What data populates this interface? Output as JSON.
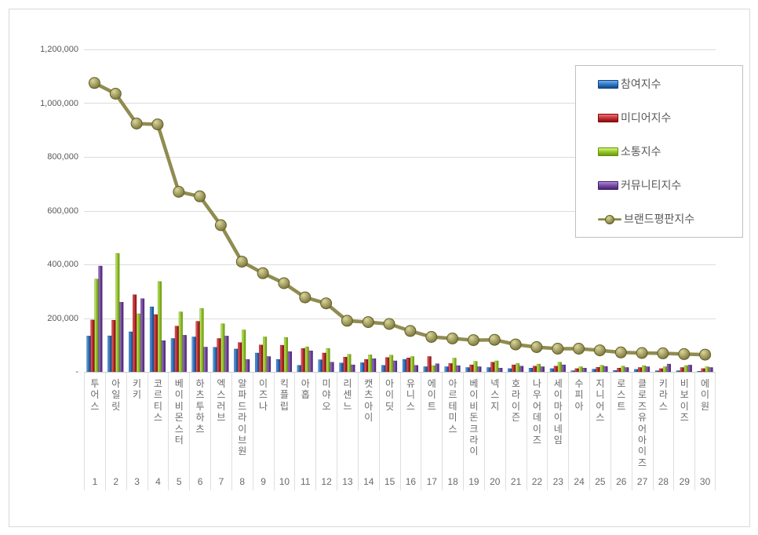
{
  "page": {
    "background": "#ffffff",
    "frame_border_color": "#d9d9d9",
    "gridline_color": "#dcdcdc",
    "axis_text_color": "#595959",
    "category_text_color": "#6a6a6a",
    "legend_border_color": "#bfbfbf"
  },
  "chart_data": {
    "type": "bar",
    "subtype": "grouped-3d-bars-with-line-overlay",
    "title": "",
    "grid": true,
    "legend_position": "top-right-inside",
    "ylim": [
      0,
      1200000
    ],
    "ytick_values": [
      1200000,
      1000000,
      800000,
      600000,
      400000,
      200000,
      0
    ],
    "ytick_labels": [
      "1,200,000",
      "1,000,000",
      "800,000",
      "600,000",
      "400,000",
      "200,000",
      "-"
    ],
    "categories": [
      "투어스",
      "아일릿",
      "키키",
      "코르티스",
      "베이비몬스터",
      "하츠투하츠",
      "엑스러브",
      "알파드라이브원",
      "이즈나",
      "킥플립",
      "아홉",
      "미야오",
      "리센느",
      "캣츠아이",
      "아이딧",
      "유니스",
      "에이트",
      "아르테미스",
      "베이비돈크라이",
      "넥스지",
      "호라이즌",
      "나우어데이즈",
      "세이마이네임",
      "수피아",
      "지니어스",
      "로스트",
      "클로즈유어아이즈",
      "키라스",
      "비보이즈",
      "에이원"
    ],
    "category_ranks": [
      "1",
      "2",
      "3",
      "4",
      "5",
      "6",
      "7",
      "8",
      "9",
      "10",
      "11",
      "12",
      "13",
      "14",
      "15",
      "16",
      "17",
      "18",
      "19",
      "20",
      "21",
      "22",
      "23",
      "24",
      "25",
      "26",
      "27",
      "28",
      "29",
      "30"
    ],
    "series": [
      {
        "name": "참여지수",
        "type": "bar",
        "color": "#3e7cc1",
        "values": [
          133000,
          134000,
          149000,
          242000,
          124000,
          130000,
          91000,
          85000,
          70000,
          46000,
          24000,
          45000,
          33000,
          34000,
          24000,
          46000,
          19000,
          19000,
          16000,
          16000,
          12000,
          14000,
          12000,
          4000,
          10000,
          5000,
          9000,
          4000,
          4000,
          2000
        ]
      },
      {
        "name": "미디어지수",
        "type": "bar",
        "color": "#c03a3e",
        "values": [
          193000,
          192000,
          287000,
          213000,
          170000,
          188000,
          124000,
          109000,
          100000,
          99000,
          87000,
          70000,
          55000,
          46000,
          53000,
          52000,
          57000,
          31000,
          26000,
          36000,
          26000,
          21000,
          21000,
          12000,
          17000,
          14000,
          16000,
          12000,
          16000,
          12000
        ]
      },
      {
        "name": "소통지수",
        "type": "bar",
        "color": "#9cc93c",
        "values": [
          345000,
          441000,
          216000,
          336000,
          223000,
          236000,
          179000,
          156000,
          130000,
          128000,
          93000,
          87000,
          65000,
          63000,
          62000,
          57000,
          23000,
          51000,
          39000,
          41000,
          31000,
          29000,
          36000,
          19000,
          24000,
          21000,
          23000,
          19000,
          23000,
          19000
        ]
      },
      {
        "name": "커뮤니티지수",
        "type": "bar",
        "color": "#7b53a5",
        "values": [
          394000,
          259000,
          272000,
          116000,
          136000,
          92000,
          133000,
          46000,
          57000,
          75000,
          78000,
          36000,
          26000,
          49000,
          41000,
          24000,
          30000,
          23000,
          19000,
          14000,
          21000,
          19000,
          26000,
          14000,
          20000,
          16000,
          19000,
          29000,
          25000,
          16000
        ]
      },
      {
        "name": "브랜드평판지수",
        "type": "line",
        "color": "#908c51",
        "values": [
          1075000,
          1035000,
          924000,
          921000,
          670000,
          653000,
          546000,
          410000,
          367000,
          330000,
          277000,
          255000,
          190000,
          185000,
          178000,
          152000,
          130000,
          124000,
          118000,
          119000,
          102000,
          92000,
          86000,
          86000,
          80000,
          72000,
          70000,
          69000,
          66000,
          64000
        ]
      }
    ]
  }
}
